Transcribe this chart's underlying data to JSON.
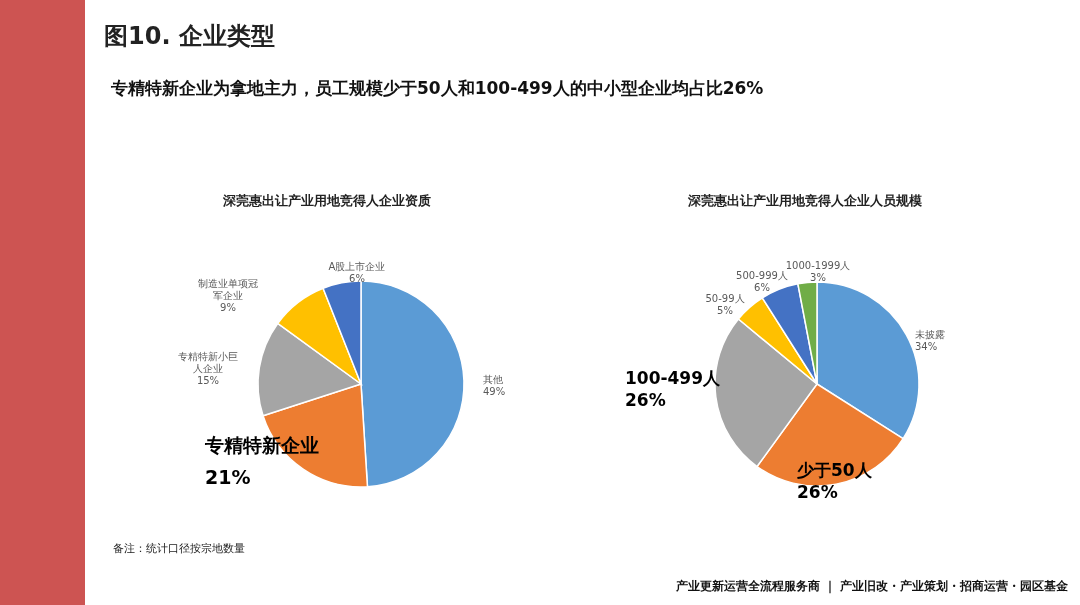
{
  "chart_data": [
    {
      "type": "other",
      "title": "图10. 企业类型",
      "subtitle": "专精特新企业为拿地主力，员工规模少于50人和100-499人的中小型企业均占比26%",
      "annotations": [
        "备注：统计口径按宗地数量",
        "产业更新运营全流程服务商 ｜ 产业旧改・产业策划・招商运营・园区基金"
      ]
    },
    {
      "type": "pie",
      "title": "深莞惠出让产业用地竞得人企业资质",
      "categories": [
        "其他",
        "专精特新企业",
        "专精特新小巨人企业",
        "制造业单项冠军企业",
        "A股上市企业"
      ],
      "values": [
        49,
        21,
        15,
        9,
        6
      ],
      "value_labels": [
        "49%",
        "21%",
        "15%",
        "9%",
        "6%"
      ],
      "colors": [
        "#5b9bd5",
        "#ed7d31",
        "#a5a5a5",
        "#ffc000",
        "#4472c4"
      ]
    },
    {
      "type": "pie",
      "title": "深莞惠出让产业用地竞得人企业人员规模",
      "categories": [
        "未披露",
        "少于50人",
        "100-499人",
        "50-99人",
        "500-999人",
        "1000-1999人"
      ],
      "values": [
        34,
        26,
        26,
        5,
        6,
        3
      ],
      "value_labels": [
        "34%",
        "26%",
        "26%",
        "5%",
        "6%",
        "3%"
      ],
      "colors": [
        "#5b9bd5",
        "#ed7d31",
        "#a5a5a5",
        "#ffc000",
        "#4472c4",
        "#70ad47"
      ]
    }
  ]
}
